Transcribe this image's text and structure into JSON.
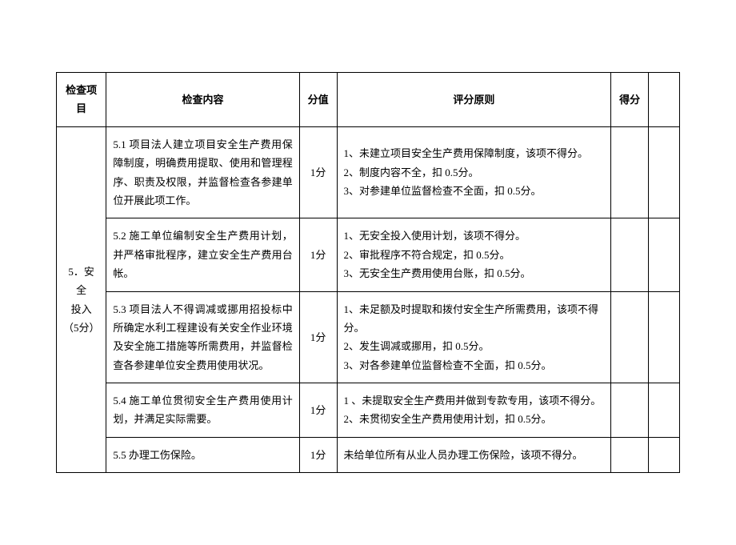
{
  "headers": {
    "item": "检查项目",
    "content": "检查内容",
    "score": "分值",
    "principle": "评分原则",
    "get": "得分",
    "extra": ""
  },
  "category": {
    "label": "5．安全\n投入\n（5分）"
  },
  "rows": [
    {
      "content": "5.1 项目法人建立项目安全生产费用保障制度，明确费用提取、使用和管理程序、职责及权限，并监督检查各参建单位开展此项工作。",
      "score": "1分",
      "principle": "1、未建立项目安全生产费用保障制度，该项不得分。\n2、制度内容不全，扣 0.5分。\n3、对参建单位监督检查不全面，扣 0.5分。"
    },
    {
      "content": "5.2 施工单位编制安全生产费用计划，并严格审批程序，建立安全生产费用台帐。",
      "score": "1分",
      "principle": "1、无安全投入使用计划，该项不得分。\n2、审批程序不符合规定，扣 0.5分。\n3、无安全生产费用使用台账，扣 0.5分。"
    },
    {
      "content": "5.3 项目法人不得调减或挪用招投标中所确定水利工程建设有关安全作业环境及安全施工措施等所需费用，并监督检查各参建单位安全费用使用状况。",
      "score": "1分",
      "principle": "1、未足额及时提取和拨付安全生产所需费用，该项不得分。\n2、发生调减或挪用，扣 0.5分。\n3、对各参建单位监督检查不全面，扣 0.5分。"
    },
    {
      "content": "5.4 施工单位贯彻安全生产费用使用计划，并满足实际需要。",
      "score": "1分",
      "principle": "1 、未提取安全生产费用并做到专款专用，该项不得分。\n2、未贯彻安全生产费用使用计划，扣 0.5分。"
    },
    {
      "content": "5.5 办理工伤保险。",
      "score": "1分",
      "principle": "未给单位所有从业人员办理工伤保险，该项不得分。"
    }
  ]
}
